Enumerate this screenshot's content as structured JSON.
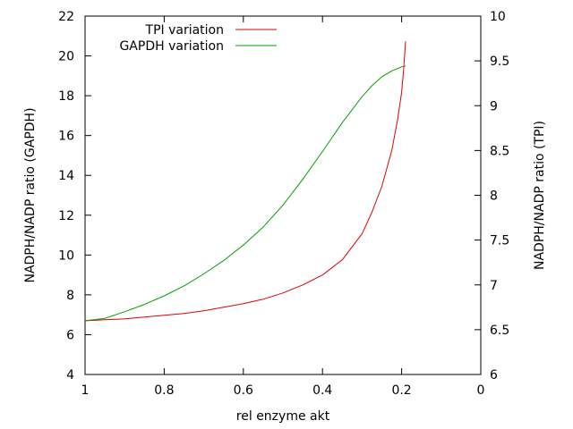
{
  "chart_data": {
    "type": "line",
    "xlabel": "rel enzyme akt",
    "ylabel_left": "NADPH/NADP ratio (GAPDH)",
    "ylabel_right": "NADPH/NADP ratio (TPI)",
    "xlim": [
      1,
      0
    ],
    "ylim_left": [
      4,
      22
    ],
    "ylim_right": [
      6,
      10
    ],
    "x_ticks": [
      1,
      0.8,
      0.6,
      0.4,
      0.2,
      0
    ],
    "x_tick_labels": [
      "1",
      "0.8",
      "0.6",
      "0.4",
      "0.2",
      "0"
    ],
    "y_left_ticks": [
      4,
      6,
      8,
      10,
      12,
      14,
      16,
      18,
      20,
      22
    ],
    "y_left_tick_labels": [
      "4",
      "6",
      "8",
      "10",
      "12",
      "14",
      "16",
      "18",
      "20",
      "22"
    ],
    "y_right_ticks": [
      6,
      6.5,
      7,
      7.5,
      8,
      8.5,
      9,
      9.5,
      10
    ],
    "y_right_tick_labels": [
      "6",
      "6.5",
      "7",
      "7.5",
      "8",
      "8.5",
      "9",
      "9.5",
      "10"
    ],
    "grid": false,
    "legend_position": "top-left",
    "series": [
      {
        "name": "TPI variation",
        "axis": "right",
        "color": "#e00000",
        "x": [
          1.0,
          0.95,
          0.9,
          0.85,
          0.8,
          0.75,
          0.7,
          0.65,
          0.6,
          0.55,
          0.5,
          0.45,
          0.4,
          0.35,
          0.3,
          0.275,
          0.25,
          0.225,
          0.21,
          0.2,
          0.195,
          0.19
        ],
        "y": [
          6.6,
          6.61,
          6.62,
          6.64,
          6.66,
          6.68,
          6.71,
          6.75,
          6.79,
          6.84,
          6.91,
          7.0,
          7.11,
          7.28,
          7.57,
          7.81,
          8.1,
          8.5,
          8.85,
          9.15,
          9.4,
          9.72
        ]
      },
      {
        "name": "GAPDH variation",
        "axis": "left",
        "color": "#00a000",
        "x": [
          1.0,
          0.95,
          0.9,
          0.85,
          0.8,
          0.75,
          0.7,
          0.65,
          0.6,
          0.55,
          0.5,
          0.45,
          0.4,
          0.35,
          0.3,
          0.275,
          0.25,
          0.225,
          0.2,
          0.19
        ],
        "y": [
          6.7,
          6.82,
          7.15,
          7.52,
          7.95,
          8.45,
          9.05,
          9.72,
          10.5,
          11.4,
          12.5,
          13.8,
          15.2,
          16.65,
          17.95,
          18.5,
          18.95,
          19.25,
          19.45,
          19.5
        ]
      }
    ]
  }
}
